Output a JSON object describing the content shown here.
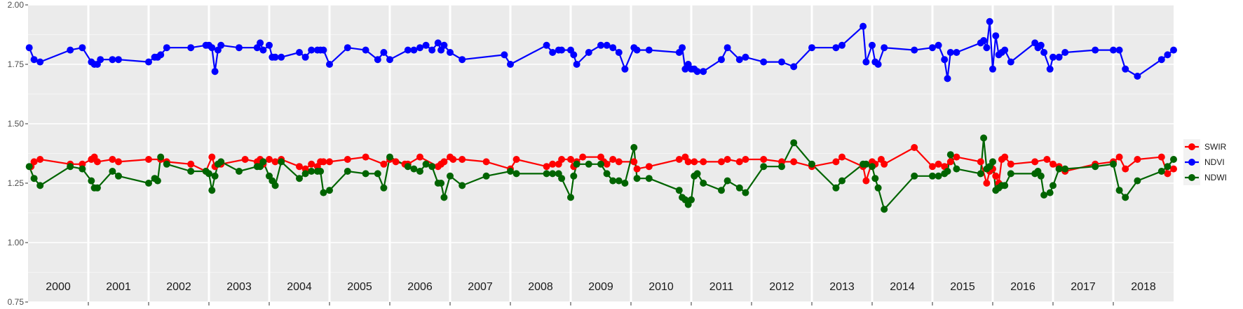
{
  "chart_data": {
    "type": "line",
    "title": "",
    "xlabel": "",
    "ylabel": "",
    "xlim": [
      2000.0,
      2019.0
    ],
    "ylim": [
      0.75,
      2.0
    ],
    "y_ticks": [
      "0.75",
      "1.00",
      "1.25",
      "1.50",
      "1.75",
      "2.00"
    ],
    "year_labels": [
      "2000",
      "2001",
      "2002",
      "2003",
      "2004",
      "2005",
      "2006",
      "2007",
      "2008",
      "2009",
      "2010",
      "2011",
      "2012",
      "2013",
      "2014",
      "2015",
      "2016",
      "2017",
      "2018"
    ],
    "grid": true,
    "legend_position": "right",
    "series": [
      {
        "name": "SWIR",
        "color": "#ff0000",
        "x": [
          2000.05,
          2000.1,
          2000.2,
          2000.7,
          2000.9,
          2001.05,
          2001.1,
          2001.15,
          2001.4,
          2001.5,
          2002.0,
          2002.2,
          2002.3,
          2002.7,
          2002.95,
          2003.05,
          2003.1,
          2003.2,
          2003.6,
          2003.8,
          2003.85,
          2003.9,
          2004.0,
          2004.1,
          2004.2,
          2004.5,
          2004.6,
          2004.7,
          2004.8,
          2004.85,
          2004.9,
          2005.0,
          2005.3,
          2005.6,
          2005.9,
          2006.0,
          2006.1,
          2006.25,
          2006.3,
          2006.5,
          2006.8,
          2006.85,
          2006.9,
          2007.0,
          2007.05,
          2007.2,
          2007.6,
          2008.0,
          2008.1,
          2008.6,
          2008.7,
          2008.8,
          2008.85,
          2009.0,
          2009.05,
          2009.1,
          2009.2,
          2009.5,
          2009.55,
          2009.6,
          2009.7,
          2009.8,
          2010.05,
          2010.1,
          2010.3,
          2010.8,
          2010.9,
          2010.95,
          2011.05,
          2011.2,
          2011.5,
          2011.6,
          2011.8,
          2011.9,
          2012.2,
          2012.5,
          2012.7,
          2013.0,
          2013.4,
          2013.5,
          2013.85,
          2013.9,
          2014.0,
          2014.05,
          2014.15,
          2014.2,
          2014.7,
          2015.0,
          2015.1,
          2015.2,
          2015.3,
          2015.4,
          2015.8,
          2015.9,
          2015.95,
          2016.0,
          2016.05,
          2016.1,
          2016.15,
          2016.2,
          2016.3,
          2016.7,
          2016.9,
          2017.0,
          2017.1,
          2017.2,
          2017.7,
          2018.0,
          2018.1,
          2018.2,
          2018.4,
          2018.8,
          2018.9,
          2019.0
        ],
        "y": [
          1.32,
          1.34,
          1.35,
          1.33,
          1.33,
          1.35,
          1.36,
          1.34,
          1.35,
          1.34,
          1.35,
          1.35,
          1.34,
          1.33,
          1.3,
          1.36,
          1.32,
          1.33,
          1.35,
          1.34,
          1.35,
          1.33,
          1.35,
          1.34,
          1.35,
          1.32,
          1.31,
          1.33,
          1.32,
          1.34,
          1.34,
          1.34,
          1.35,
          1.36,
          1.33,
          1.35,
          1.34,
          1.33,
          1.33,
          1.36,
          1.32,
          1.33,
          1.34,
          1.36,
          1.35,
          1.35,
          1.34,
          1.31,
          1.35,
          1.32,
          1.33,
          1.33,
          1.35,
          1.35,
          1.32,
          1.34,
          1.36,
          1.36,
          1.34,
          1.33,
          1.35,
          1.34,
          1.34,
          1.31,
          1.32,
          1.35,
          1.36,
          1.34,
          1.34,
          1.34,
          1.34,
          1.35,
          1.34,
          1.35,
          1.35,
          1.34,
          1.34,
          1.32,
          1.34,
          1.36,
          1.32,
          1.26,
          1.34,
          1.33,
          1.35,
          1.33,
          1.4,
          1.32,
          1.33,
          1.32,
          1.34,
          1.36,
          1.34,
          1.25,
          1.3,
          1.31,
          1.28,
          1.25,
          1.35,
          1.36,
          1.33,
          1.34,
          1.35,
          1.33,
          1.32,
          1.3,
          1.33,
          1.34,
          1.36,
          1.31,
          1.35,
          1.36,
          1.29,
          1.31
        ]
      },
      {
        "name": "NDVI",
        "color": "#0000ff",
        "x": [
          2000.02,
          2000.1,
          2000.2,
          2000.7,
          2000.9,
          2001.05,
          2001.1,
          2001.15,
          2001.2,
          2001.4,
          2001.5,
          2002.0,
          2002.1,
          2002.15,
          2002.2,
          2002.3,
          2002.7,
          2002.95,
          2003.0,
          2003.05,
          2003.1,
          2003.15,
          2003.2,
          2003.5,
          2003.8,
          2003.85,
          2003.9,
          2004.0,
          2004.05,
          2004.1,
          2004.2,
          2004.5,
          2004.6,
          2004.7,
          2004.8,
          2004.85,
          2004.9,
          2005.0,
          2005.3,
          2005.6,
          2005.8,
          2005.9,
          2006.0,
          2006.3,
          2006.4,
          2006.5,
          2006.6,
          2006.7,
          2006.8,
          2006.85,
          2006.9,
          2007.0,
          2007.2,
          2007.9,
          2008.0,
          2008.6,
          2008.7,
          2008.8,
          2008.85,
          2009.0,
          2009.05,
          2009.1,
          2009.3,
          2009.5,
          2009.6,
          2009.7,
          2009.8,
          2009.9,
          2010.05,
          2010.1,
          2010.3,
          2010.8,
          2010.85,
          2010.9,
          2010.95,
          2011.0,
          2011.05,
          2011.1,
          2011.2,
          2011.5,
          2011.6,
          2011.8,
          2011.9,
          2012.2,
          2012.5,
          2012.7,
          2013.0,
          2013.4,
          2013.5,
          2013.85,
          2013.9,
          2014.0,
          2014.05,
          2014.1,
          2014.2,
          2014.7,
          2015.0,
          2015.1,
          2015.2,
          2015.25,
          2015.3,
          2015.4,
          2015.8,
          2015.85,
          2015.9,
          2015.95,
          2016.0,
          2016.05,
          2016.1,
          2016.15,
          2016.2,
          2016.3,
          2016.7,
          2016.75,
          2016.8,
          2016.85,
          2016.95,
          2017.0,
          2017.1,
          2017.2,
          2017.7,
          2018.0,
          2018.1,
          2018.2,
          2018.4,
          2018.8,
          2018.9,
          2019.0
        ],
        "y": [
          1.82,
          1.77,
          1.76,
          1.81,
          1.82,
          1.76,
          1.75,
          1.75,
          1.77,
          1.77,
          1.77,
          1.76,
          1.78,
          1.78,
          1.79,
          1.82,
          1.82,
          1.83,
          1.83,
          1.82,
          1.72,
          1.81,
          1.83,
          1.82,
          1.82,
          1.84,
          1.81,
          1.83,
          1.78,
          1.78,
          1.78,
          1.8,
          1.78,
          1.81,
          1.81,
          1.81,
          1.81,
          1.75,
          1.82,
          1.81,
          1.77,
          1.8,
          1.77,
          1.81,
          1.81,
          1.82,
          1.83,
          1.81,
          1.84,
          1.81,
          1.83,
          1.8,
          1.77,
          1.79,
          1.75,
          1.83,
          1.8,
          1.81,
          1.81,
          1.81,
          1.79,
          1.75,
          1.8,
          1.83,
          1.83,
          1.82,
          1.8,
          1.73,
          1.82,
          1.81,
          1.81,
          1.8,
          1.82,
          1.73,
          1.75,
          1.73,
          1.73,
          1.72,
          1.72,
          1.77,
          1.82,
          1.77,
          1.78,
          1.76,
          1.76,
          1.74,
          1.82,
          1.82,
          1.83,
          1.91,
          1.76,
          1.83,
          1.76,
          1.75,
          1.82,
          1.81,
          1.82,
          1.83,
          1.77,
          1.69,
          1.8,
          1.8,
          1.84,
          1.85,
          1.82,
          1.93,
          1.73,
          1.87,
          1.79,
          1.8,
          1.81,
          1.76,
          1.84,
          1.82,
          1.83,
          1.8,
          1.73,
          1.78,
          1.78,
          1.8,
          1.81,
          1.81,
          1.81,
          1.73,
          1.7,
          1.77,
          1.79,
          1.81
        ]
      },
      {
        "name": "NDWI",
        "color": "#006400",
        "x": [
          2000.02,
          2000.1,
          2000.2,
          2000.7,
          2000.9,
          2001.05,
          2001.1,
          2001.15,
          2001.4,
          2001.5,
          2002.0,
          2002.1,
          2002.15,
          2002.2,
          2002.3,
          2002.7,
          2002.95,
          2003.0,
          2003.05,
          2003.1,
          2003.15,
          2003.2,
          2003.5,
          2003.8,
          2003.85,
          2003.9,
          2004.0,
          2004.05,
          2004.1,
          2004.2,
          2004.5,
          2004.6,
          2004.7,
          2004.8,
          2004.85,
          2004.9,
          2005.0,
          2005.3,
          2005.6,
          2005.8,
          2005.9,
          2006.0,
          2006.3,
          2006.4,
          2006.5,
          2006.6,
          2006.7,
          2006.8,
          2006.85,
          2006.9,
          2007.0,
          2007.2,
          2007.6,
          2008.0,
          2008.1,
          2008.6,
          2008.7,
          2008.8,
          2008.85,
          2009.0,
          2009.05,
          2009.1,
          2009.3,
          2009.5,
          2009.6,
          2009.7,
          2009.8,
          2009.9,
          2010.05,
          2010.1,
          2010.3,
          2010.8,
          2010.85,
          2010.9,
          2010.95,
          2011.0,
          2011.05,
          2011.1,
          2011.2,
          2011.5,
          2011.6,
          2011.8,
          2011.9,
          2012.2,
          2012.5,
          2012.7,
          2013.0,
          2013.4,
          2013.5,
          2013.85,
          2013.9,
          2014.0,
          2014.05,
          2014.1,
          2014.2,
          2014.7,
          2015.0,
          2015.1,
          2015.2,
          2015.25,
          2015.3,
          2015.4,
          2015.8,
          2015.85,
          2015.9,
          2015.95,
          2016.0,
          2016.05,
          2016.1,
          2016.15,
          2016.2,
          2016.3,
          2016.7,
          2016.75,
          2016.8,
          2016.85,
          2016.95,
          2017.0,
          2017.1,
          2017.2,
          2017.7,
          2018.0,
          2018.1,
          2018.2,
          2018.4,
          2018.8,
          2018.9,
          2019.0
        ],
        "y": [
          1.32,
          1.27,
          1.24,
          1.32,
          1.31,
          1.26,
          1.23,
          1.23,
          1.3,
          1.28,
          1.25,
          1.27,
          1.26,
          1.36,
          1.33,
          1.3,
          1.3,
          1.29,
          1.22,
          1.28,
          1.33,
          1.34,
          1.3,
          1.32,
          1.32,
          1.34,
          1.28,
          1.26,
          1.24,
          1.34,
          1.27,
          1.29,
          1.3,
          1.3,
          1.3,
          1.21,
          1.22,
          1.3,
          1.29,
          1.29,
          1.23,
          1.36,
          1.32,
          1.31,
          1.3,
          1.33,
          1.32,
          1.25,
          1.25,
          1.19,
          1.28,
          1.24,
          1.28,
          1.3,
          1.29,
          1.29,
          1.29,
          1.29,
          1.27,
          1.19,
          1.28,
          1.33,
          1.33,
          1.33,
          1.29,
          1.26,
          1.26,
          1.25,
          1.4,
          1.27,
          1.27,
          1.22,
          1.19,
          1.18,
          1.16,
          1.18,
          1.28,
          1.29,
          1.25,
          1.22,
          1.26,
          1.23,
          1.21,
          1.32,
          1.32,
          1.42,
          1.33,
          1.23,
          1.26,
          1.33,
          1.33,
          1.32,
          1.27,
          1.23,
          1.14,
          1.28,
          1.28,
          1.28,
          1.29,
          1.3,
          1.37,
          1.31,
          1.29,
          1.44,
          1.31,
          1.32,
          1.34,
          1.22,
          1.23,
          1.24,
          1.24,
          1.29,
          1.29,
          1.3,
          1.28,
          1.2,
          1.21,
          1.24,
          1.31,
          1.31,
          1.32,
          1.33,
          1.22,
          1.19,
          1.26,
          1.3,
          1.32,
          1.35
        ]
      }
    ]
  }
}
